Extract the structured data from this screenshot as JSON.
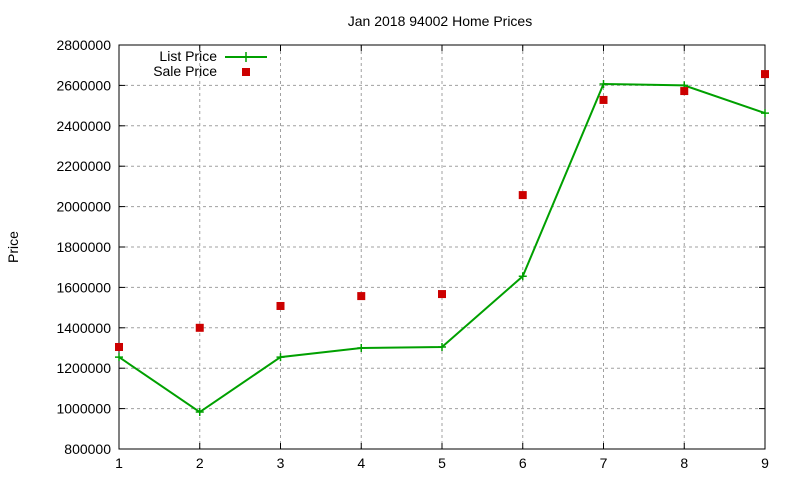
{
  "chart_data": {
    "type": "line",
    "title": "Jan 2018 94002 Home Prices",
    "xlabel": "",
    "ylabel": "Price",
    "x": [
      1,
      2,
      3,
      4,
      5,
      6,
      7,
      8,
      9
    ],
    "xticks": [
      "1",
      "2",
      "3",
      "4",
      "5",
      "6",
      "7",
      "8",
      "9"
    ],
    "yticks": [
      "800000",
      "1000000",
      "1200000",
      "1400000",
      "1600000",
      "1800000",
      "2000000",
      "2200000",
      "2400000",
      "2600000",
      "2800000"
    ],
    "xlim": [
      1,
      9
    ],
    "ylim": [
      800000,
      2800000
    ],
    "grid": true,
    "legend_position": "top-left",
    "series": [
      {
        "name": "List Price",
        "style": "lines+points",
        "marker": "plus",
        "color": "#00a000",
        "values": [
          1255000,
          983000,
          1255000,
          1300000,
          1305000,
          1655000,
          2607000,
          2600000,
          2463000
        ]
      },
      {
        "name": "Sale Price",
        "style": "points",
        "marker": "square",
        "color": "#cc0000",
        "values": [
          1305000,
          1400000,
          1508000,
          1557000,
          1567000,
          2057000,
          2528000,
          2572000,
          2656000
        ]
      }
    ]
  }
}
